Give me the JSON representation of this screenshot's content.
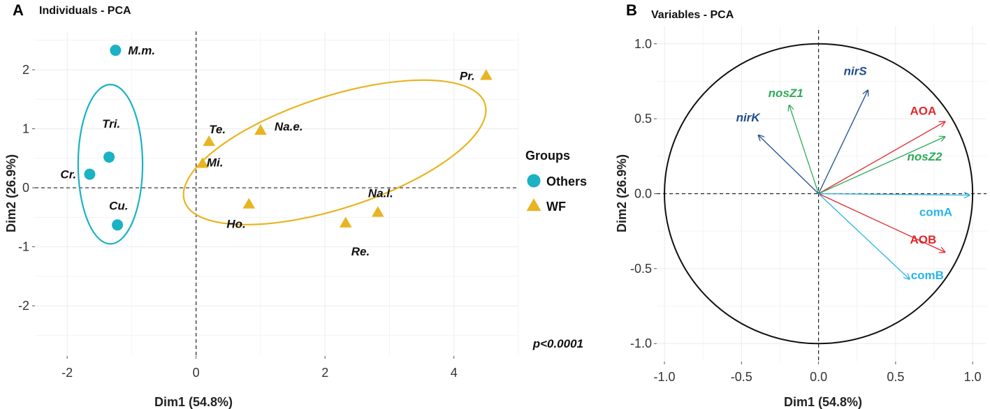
{
  "chart_data": [
    {
      "type": "scatter",
      "panel_letter": "A",
      "title": "Individuals - PCA",
      "xlabel": "Dim1 (54.8%)",
      "ylabel": "Dim2 (26.9%)",
      "xlim": [
        -2.5,
        5.0
      ],
      "ylim": [
        -2.85,
        2.65
      ],
      "x_ticks": [
        -2,
        0,
        2,
        4
      ],
      "y_ticks": [
        -2,
        -1,
        0,
        1,
        2
      ],
      "annotation": "p<0.0001",
      "legend": {
        "title": "Groups",
        "position": "right",
        "entries": [
          {
            "label": "Others",
            "shape": "circle",
            "color": "#1ab2c4"
          },
          {
            "label": "WF",
            "shape": "triangle",
            "color": "#e8b422"
          }
        ]
      },
      "series": [
        {
          "name": "Others",
          "color": "#1ab2c4",
          "shape": "circle",
          "points": [
            {
              "label": "M.m.",
              "x": -1.25,
              "y": 2.33
            },
            {
              "label": "Tri.",
              "x": -1.35,
              "y": 0.52
            },
            {
              "label": "Cr.",
              "x": -1.65,
              "y": 0.23
            },
            {
              "label": "Cu.",
              "x": -1.22,
              "y": -0.63
            }
          ]
        },
        {
          "name": "WF",
          "color": "#e8b422",
          "shape": "triangle",
          "points": [
            {
              "label": "Pr.",
              "x": 4.5,
              "y": 1.9
            },
            {
              "label": "Na.e.",
              "x": 1.0,
              "y": 0.97
            },
            {
              "label": "Te.",
              "x": 0.2,
              "y": 0.78
            },
            {
              "label": "Mi.",
              "x": 0.1,
              "y": 0.41
            },
            {
              "label": "Ho.",
              "x": 0.82,
              "y": -0.28
            },
            {
              "label": "Re.",
              "x": 2.32,
              "y": -0.6
            },
            {
              "label": "Na.l.",
              "x": 2.82,
              "y": -0.42
            }
          ]
        }
      ],
      "ellipses": [
        {
          "group": "Others",
          "color": "#1ab2c4",
          "cx": -1.33,
          "cy": 0.4,
          "rx": 0.5,
          "ry": 1.35,
          "angle_deg": 0
        },
        {
          "group": "WF",
          "color": "#e8b422",
          "cx": 2.15,
          "cy": 0.6,
          "rx": 2.45,
          "ry": 0.95,
          "angle_deg": 18
        }
      ]
    },
    {
      "type": "vector",
      "panel_letter": "B",
      "title": "Variables - PCA",
      "xlabel": "Dim1 (54.8%)",
      "ylabel": "Dim2 (26.9%)",
      "xlim": [
        -1.05,
        1.09
      ],
      "ylim": [
        -1.12,
        1.12
      ],
      "x_ticks": [
        -1.0,
        -0.5,
        0.0,
        0.5,
        1.0
      ],
      "y_ticks": [
        -1.0,
        -0.5,
        0.0,
        0.5,
        1.0
      ],
      "tick_labels": [
        "-1.0",
        "-0.5",
        "0.0",
        "0.5",
        "1.0"
      ],
      "unit_circle": true,
      "vectors": [
        {
          "label": "nirS",
          "x": 0.32,
          "y": 0.69,
          "color": "#1f4e8c",
          "italic": true
        },
        {
          "label": "nosZ1",
          "x": -0.19,
          "y": 0.59,
          "color": "#2eab57",
          "italic": true
        },
        {
          "label": "nirK",
          "x": -0.39,
          "y": 0.39,
          "color": "#1f4e8c",
          "italic": true
        },
        {
          "label": "AOA",
          "x": 0.82,
          "y": 0.48,
          "color": "#e3262b",
          "italic": false
        },
        {
          "label": "nosZ2",
          "x": 0.82,
          "y": 0.38,
          "color": "#2eab57",
          "italic": true
        },
        {
          "label": "comA",
          "x": 0.98,
          "y": -0.01,
          "color": "#29b4e6",
          "italic": false
        },
        {
          "label": "AOB",
          "x": 0.82,
          "y": -0.39,
          "color": "#e3262b",
          "italic": false
        },
        {
          "label": "comB",
          "x": 0.59,
          "y": -0.57,
          "color": "#29b4e6",
          "italic": false
        }
      ]
    }
  ]
}
